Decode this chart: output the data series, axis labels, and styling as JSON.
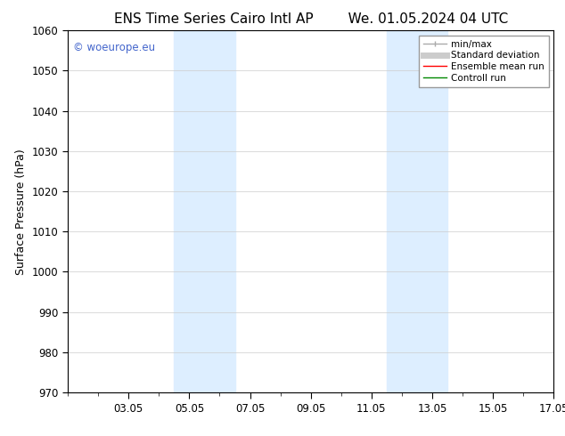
{
  "title_left": "ENS Time Series Cairo Intl AP",
  "title_right": "We. 01.05.2024 04 UTC",
  "ylabel": "Surface Pressure (hPa)",
  "ylim": [
    970,
    1060
  ],
  "yticks": [
    970,
    980,
    990,
    1000,
    1010,
    1020,
    1030,
    1040,
    1050,
    1060
  ],
  "xlim": [
    0,
    16
  ],
  "xtick_labels": [
    "03.05",
    "05.05",
    "07.05",
    "09.05",
    "11.05",
    "13.05",
    "15.05",
    "17.05"
  ],
  "xtick_positions": [
    2,
    4,
    6,
    8,
    10,
    12,
    14,
    16
  ],
  "shaded_bands": [
    {
      "x_start": 3.5,
      "x_end": 5.5
    },
    {
      "x_start": 10.5,
      "x_end": 12.5
    }
  ],
  "shaded_color": "#ddeeff",
  "background_color": "#ffffff",
  "watermark": "© woeurope.eu",
  "watermark_color": "#4466cc",
  "legend_items": [
    {
      "label": "min/max",
      "color": "#aaaaaa",
      "lw": 1.0
    },
    {
      "label": "Standard deviation",
      "color": "#cccccc",
      "lw": 5
    },
    {
      "label": "Ensemble mean run",
      "color": "#ff0000",
      "lw": 1.0
    },
    {
      "label": "Controll run",
      "color": "#008800",
      "lw": 1.0
    }
  ],
  "title_fontsize": 11,
  "label_fontsize": 9,
  "tick_fontsize": 8.5,
  "minor_tick_count": 1
}
